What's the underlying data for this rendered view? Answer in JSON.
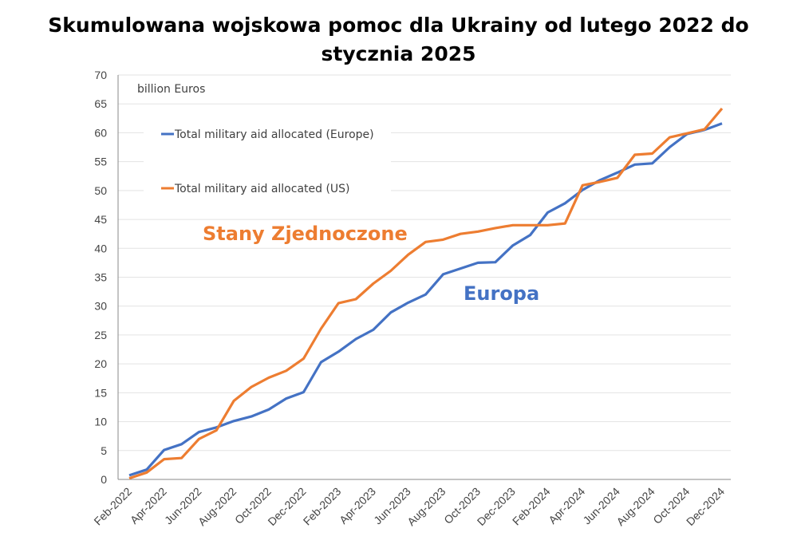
{
  "chart_data": {
    "type": "line",
    "title": "Skumulowana wojskowa pomoc dla Ukrainy od lutego 2022 do stycznia 2025",
    "ylabel": "billion Euros",
    "xlabel": "",
    "ylim": [
      0,
      70
    ],
    "yticks": [
      "0",
      "5",
      "10",
      "15",
      "20",
      "25",
      "30",
      "35",
      "40",
      "45",
      "50",
      "55",
      "60",
      "65",
      "70"
    ],
    "xtick_labels": [
      "Feb-2022",
      "Apr-2022",
      "Jun-2022",
      "Aug-2022",
      "Oct-2022",
      "Dec-2022",
      "Feb-2023",
      "Apr-2023",
      "Jun-2023",
      "Aug-2023",
      "Oct-2023",
      "Dec-2023",
      "Feb-2024",
      "Apr-2024",
      "Jun-2024",
      "Aug-2024",
      "Oct-2024",
      "Dec-2024"
    ],
    "grid": true,
    "legend_position": "top-left",
    "series": [
      {
        "name": "Total military aid allocated (Europe)",
        "color": "#4472C4",
        "values": [
          0.7,
          1.7,
          5.1,
          6.1,
          8.2,
          9.0,
          10.1,
          10.9,
          12.1,
          14.0,
          15.1,
          20.3,
          22.1,
          24.3,
          25.9,
          28.9,
          30.6,
          32.0,
          35.5,
          36.5,
          37.5,
          37.6,
          40.5,
          42.3,
          46.2,
          47.8,
          50.1,
          51.8,
          53.1,
          54.5,
          54.7,
          57.5,
          59.8,
          60.5,
          61.6
        ]
      },
      {
        "name": "Total military aid allocated (US)",
        "color": "#ED7D31",
        "values": [
          0.2,
          1.2,
          3.5,
          3.7,
          7.0,
          8.5,
          13.6,
          16.0,
          17.6,
          18.8,
          20.9,
          26.1,
          30.5,
          31.2,
          33.9,
          36.1,
          38.9,
          41.1,
          41.5,
          42.5,
          42.9,
          43.5,
          44.0,
          44.0,
          44.0,
          44.3,
          50.9,
          51.5,
          52.2,
          56.2,
          56.4,
          59.2,
          59.9,
          60.6,
          64.2
        ]
      }
    ],
    "annotations": [
      {
        "text": "Stany Zjednoczone",
        "color": "#ED7D31"
      },
      {
        "text": "Europa",
        "color": "#4472C4"
      }
    ]
  }
}
